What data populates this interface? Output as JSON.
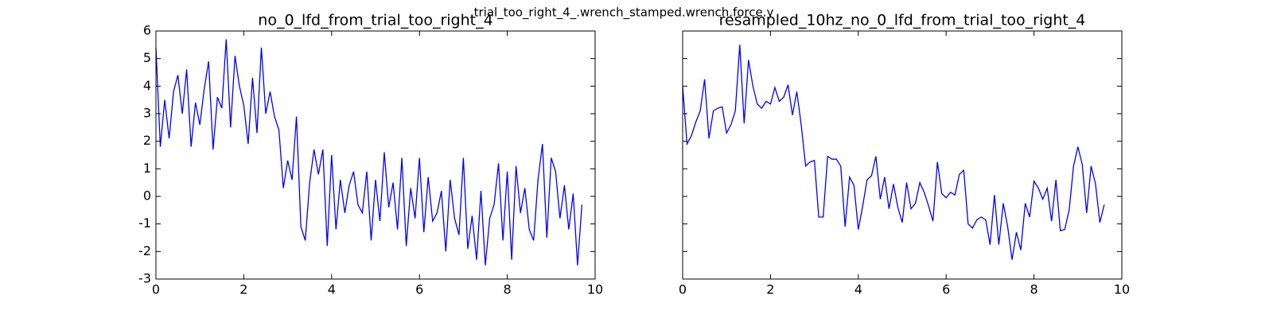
{
  "title": "trial_too_right_4_.wrench_stamped.wrench.force.y",
  "chart_data": [
    {
      "type": "line",
      "title": "no_0_lfd_from_trial_too_right_4",
      "x": [
        0,
        0.1,
        0.2,
        0.3,
        0.4,
        0.5,
        0.6,
        0.7,
        0.8,
        0.9,
        1,
        1.1,
        1.2,
        1.3,
        1.4,
        1.5,
        1.6,
        1.7,
        1.8,
        1.9,
        2,
        2.1,
        2.2,
        2.3,
        2.4,
        2.5,
        2.6,
        2.7,
        2.8,
        2.9,
        3,
        3.1,
        3.2,
        3.3,
        3.4,
        3.5,
        3.6,
        3.7,
        3.8,
        3.9,
        4,
        4.1,
        4.2,
        4.3,
        4.4,
        4.5,
        4.6,
        4.7,
        4.8,
        4.9,
        5,
        5.1,
        5.2,
        5.3,
        5.4,
        5.5,
        5.6,
        5.7,
        5.8,
        5.9,
        6,
        6.1,
        6.2,
        6.3,
        6.4,
        6.5,
        6.6,
        6.7,
        6.8,
        6.9,
        7,
        7.1,
        7.2,
        7.3,
        7.4,
        7.5,
        7.6,
        7.7,
        7.8,
        7.9,
        8,
        8.1,
        8.2,
        8.3,
        8.4,
        8.5,
        8.6,
        8.7,
        8.8,
        8.9,
        9,
        9.1,
        9.2,
        9.3,
        9.4,
        9.5,
        9.6,
        9.7
      ],
      "values": [
        5.4,
        1.8,
        3.5,
        2.1,
        3.8,
        4.4,
        3.0,
        4.6,
        1.8,
        3.4,
        2.6,
        3.9,
        4.9,
        1.7,
        3.6,
        3.2,
        5.7,
        2.5,
        5.1,
        4.0,
        3.3,
        1.9,
        4.3,
        2.3,
        5.4,
        3.0,
        3.8,
        2.9,
        2.4,
        0.3,
        1.3,
        0.6,
        2.9,
        -1.1,
        -1.6,
        0.5,
        1.7,
        0.8,
        1.7,
        -1.8,
        1.5,
        -1.2,
        0.6,
        -0.6,
        0.4,
        0.9,
        -0.3,
        -0.6,
        0.9,
        -1.6,
        0.6,
        -0.9,
        1.6,
        -0.4,
        0.5,
        -1.2,
        1.4,
        -1.8,
        0.3,
        -0.8,
        1.4,
        -1.3,
        0.7,
        -0.9,
        -0.6,
        0.2,
        -2.0,
        0.6,
        -0.8,
        -1.4,
        1.4,
        -1.9,
        -0.7,
        -2.3,
        0.2,
        -2.5,
        -0.8,
        -0.3,
        1.2,
        -1.6,
        0.9,
        -2.3,
        1.1,
        -0.6,
        0.3,
        -1.2,
        -1.6,
        0.6,
        1.9,
        -1.5,
        1.4,
        0.9,
        -0.8,
        0.4,
        -1.2,
        0.1,
        -2.5,
        -0.3
      ],
      "color": "#0000ff",
      "xlim": [
        0,
        10
      ],
      "xticks": [
        0,
        2,
        4,
        6,
        8,
        10
      ],
      "ylim": [
        -3,
        6
      ],
      "yticks": [
        -3,
        -2,
        -1,
        0,
        1,
        2,
        3,
        4,
        5,
        6
      ]
    },
    {
      "type": "line",
      "title": "resampled_10hz_no_0_lfd_from_trial_too_right_4",
      "x": [
        0,
        0.1,
        0.2,
        0.3,
        0.4,
        0.5,
        0.6,
        0.7,
        0.8,
        0.9,
        1,
        1.1,
        1.2,
        1.3,
        1.4,
        1.5,
        1.6,
        1.7,
        1.8,
        1.9,
        2,
        2.1,
        2.2,
        2.3,
        2.4,
        2.5,
        2.6,
        2.7,
        2.8,
        2.9,
        3,
        3.1,
        3.2,
        3.3,
        3.4,
        3.5,
        3.6,
        3.7,
        3.8,
        3.9,
        4,
        4.1,
        4.2,
        4.3,
        4.4,
        4.5,
        4.6,
        4.7,
        4.8,
        4.9,
        5,
        5.1,
        5.2,
        5.3,
        5.4,
        5.5,
        5.6,
        5.7,
        5.8,
        5.9,
        6,
        6.1,
        6.2,
        6.3,
        6.4,
        6.5,
        6.6,
        6.7,
        6.8,
        6.9,
        7,
        7.1,
        7.2,
        7.3,
        7.4,
        7.5,
        7.6,
        7.7,
        7.8,
        7.9,
        8,
        8.1,
        8.2,
        8.3,
        8.4,
        8.5,
        8.6,
        8.7,
        8.8,
        8.9,
        9,
        9.1,
        9.2,
        9.3,
        9.4,
        9.5,
        9.6
      ],
      "values": [
        4.0,
        1.9,
        2.2,
        2.7,
        3.1,
        4.25,
        2.1,
        3.1,
        3.2,
        3.25,
        2.3,
        2.6,
        3.1,
        5.5,
        2.65,
        4.95,
        4.0,
        3.35,
        3.2,
        3.45,
        3.35,
        3.95,
        3.45,
        3.6,
        4.05,
        2.95,
        3.8,
        2.6,
        1.1,
        1.25,
        1.3,
        -0.75,
        -0.75,
        1.45,
        1.35,
        1.35,
        1.1,
        -1.1,
        0.7,
        0.4,
        -1.2,
        -0.35,
        0.6,
        0.75,
        1.45,
        -0.1,
        0.7,
        -0.45,
        0.45,
        -0.4,
        -0.95,
        0.5,
        -0.45,
        -0.25,
        0.5,
        0.15,
        -0.35,
        -0.9,
        1.25,
        0.1,
        -0.05,
        0.15,
        0.05,
        0.8,
        0.95,
        -1.0,
        -1.15,
        -0.85,
        -0.75,
        -0.85,
        -1.75,
        0.05,
        -1.75,
        -0.25,
        -1.1,
        -2.3,
        -1.3,
        -1.95,
        -0.25,
        -0.75,
        0.55,
        0.3,
        -0.1,
        0.3,
        -0.9,
        0.6,
        -1.25,
        -1.2,
        -0.5,
        1.1,
        1.8,
        1.15,
        -0.6,
        1.1,
        0.45,
        -0.95,
        -0.3
      ],
      "color": "#0000ff",
      "xlim": [
        0,
        10
      ],
      "xticks": [
        0,
        2,
        4,
        6,
        8,
        10
      ],
      "ylim": [
        -3,
        6
      ],
      "yticks": [
        -3,
        -2,
        -1,
        0,
        1,
        2,
        3,
        4,
        5,
        6
      ]
    }
  ]
}
